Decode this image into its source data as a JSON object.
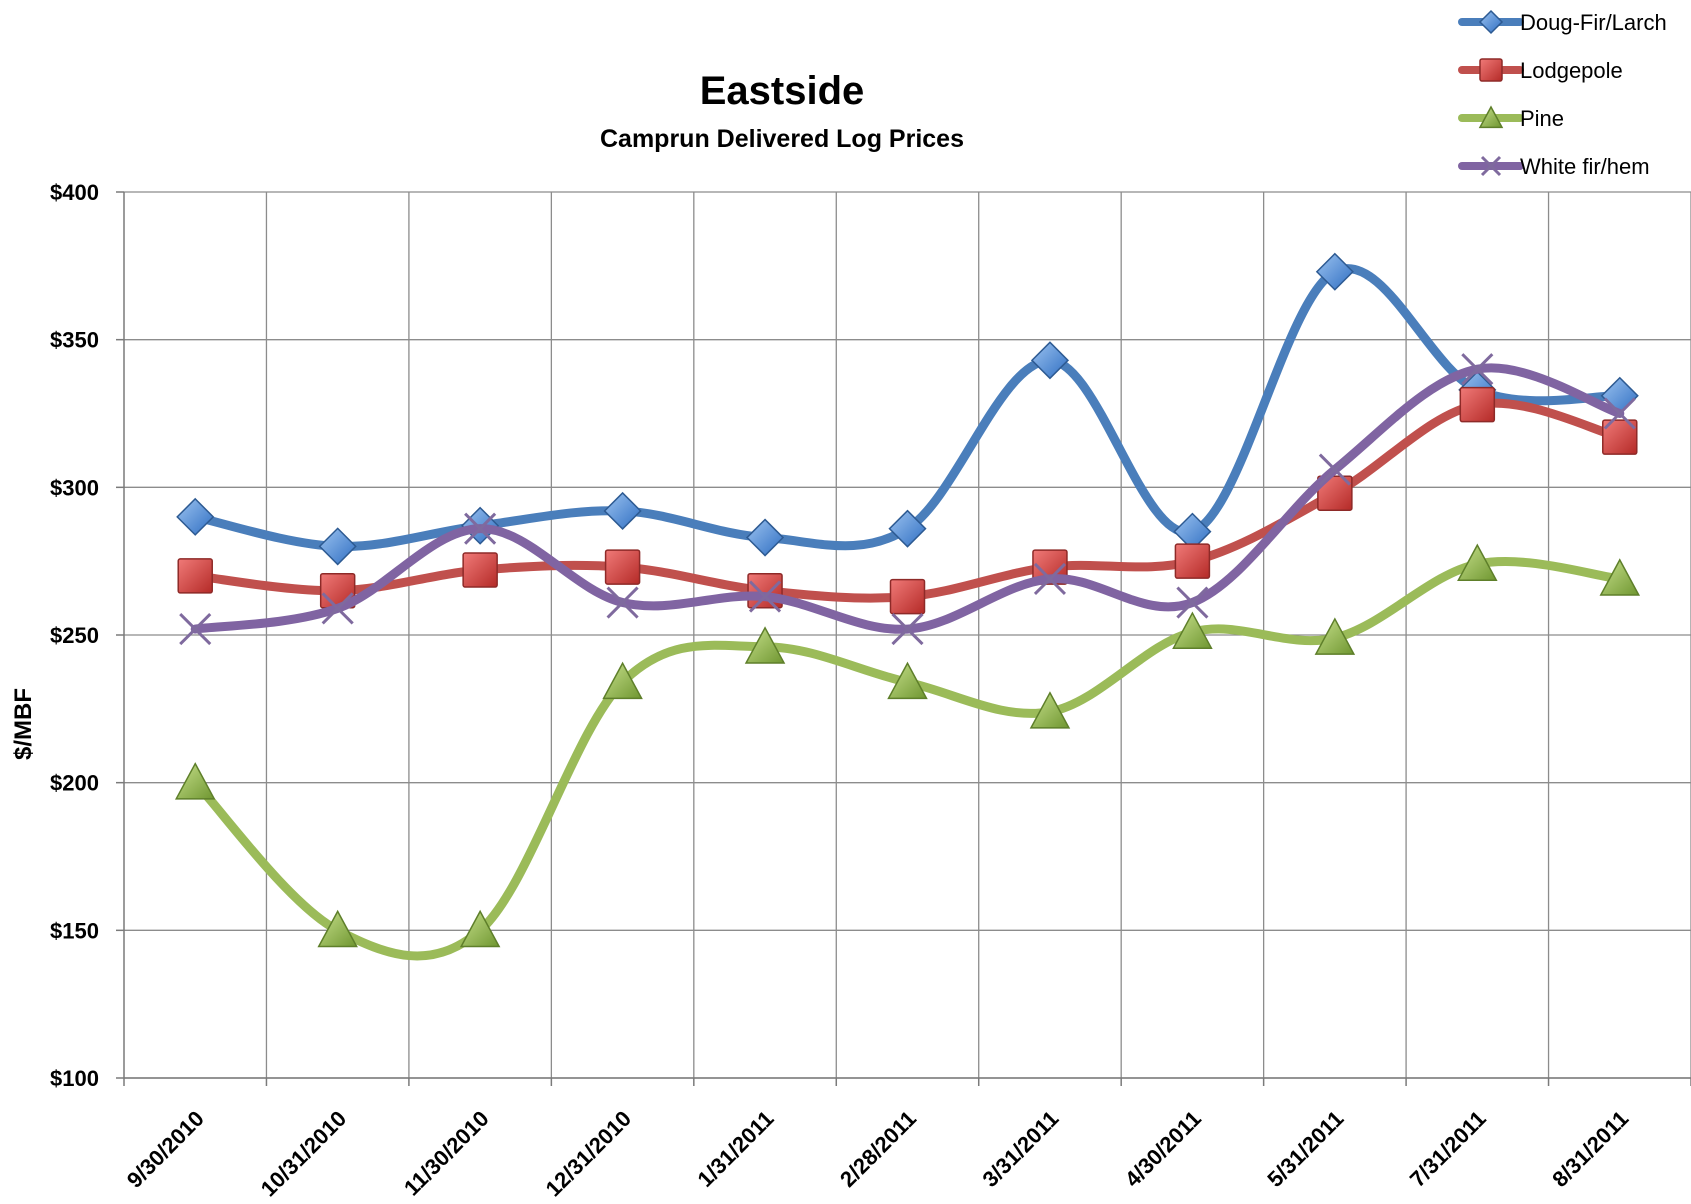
{
  "chart_data": {
    "type": "line",
    "title": "Eastside",
    "subtitle": "Camprun Delivered Log Prices",
    "ylabel": "$/MBF",
    "xlabel": "",
    "ylim": [
      100,
      400
    ],
    "y_ticks": [
      "$100",
      "$150",
      "$200",
      "$250",
      "$300",
      "$350",
      "$400"
    ],
    "y_tick_values": [
      100,
      150,
      200,
      250,
      300,
      350,
      400
    ],
    "categories": [
      "9/30/2010",
      "10/31/2010",
      "11/30/2010",
      "12/31/2010",
      "1/31/2011",
      "2/28/2011",
      "3/31/2011",
      "4/30/2011",
      "5/31/2011",
      "7/31/2011",
      "8/31/2011"
    ],
    "grid": true,
    "smooth": true,
    "legend_position": "top-right",
    "series": [
      {
        "name": "Doug-Fir/Larch",
        "color": "#4a7ebb",
        "marker": "diamond",
        "values": [
          290,
          280,
          287,
          292,
          283,
          286,
          343,
          285,
          373,
          333,
          331
        ]
      },
      {
        "name": "Lodgepole",
        "color": "#c0504d",
        "marker": "square",
        "values": [
          270,
          265,
          272,
          273,
          265,
          263,
          273,
          275,
          298,
          328,
          317
        ]
      },
      {
        "name": "Pine",
        "color": "#9bbb59",
        "marker": "triangle",
        "values": [
          200,
          150,
          150,
          234,
          246,
          234,
          224,
          251,
          249,
          274,
          269
        ]
      },
      {
        "name": "White fir/hem",
        "color": "#8064a2",
        "marker": "x",
        "values": [
          252,
          259,
          286,
          261,
          263,
          252,
          269,
          261,
          306,
          340,
          325
        ]
      }
    ]
  }
}
